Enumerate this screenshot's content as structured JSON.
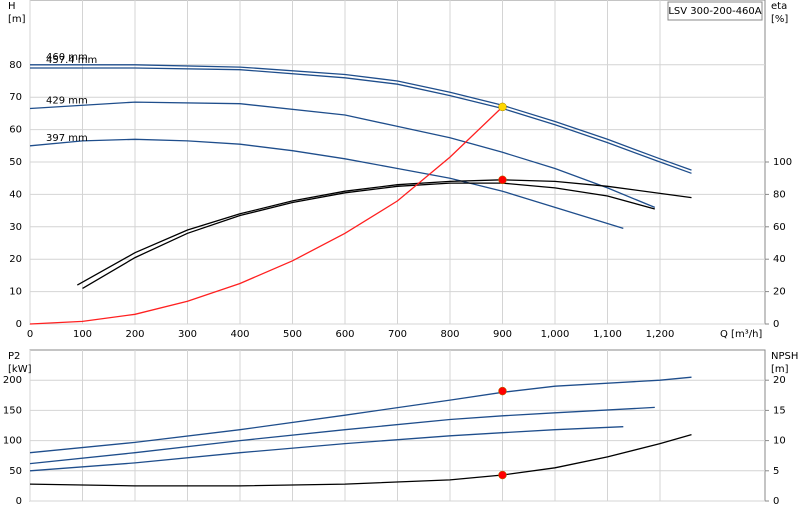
{
  "chart_data": [
    {
      "type": "line",
      "label_box": "LSV 300-200-460A",
      "y_label": "H",
      "y_unit": "[m]",
      "y2_label": "eta",
      "y2_unit": "[%]",
      "x_label": "Q [m³/h]",
      "xlim": [
        0,
        1400
      ],
      "xticks": [
        0,
        100,
        200,
        300,
        400,
        500,
        600,
        700,
        800,
        900,
        {
          "value": 1000,
          "label": "1,000"
        },
        {
          "value": 1100,
          "label": "1,100"
        },
        {
          "value": 1200,
          "label": "1,200"
        }
      ],
      "ylim": [
        0,
        100
      ],
      "yticks": [
        0,
        10,
        20,
        30,
        40,
        50,
        60,
        70,
        80
      ],
      "y2lim": [
        0,
        200
      ],
      "y2ticks": [
        0,
        20,
        40,
        60,
        80,
        100
      ],
      "grid": true,
      "show_xtick_labels": true,
      "series": [
        {
          "name": "460 mm",
          "color": "#1f4e8c",
          "x": [
            0,
            200,
            400,
            600,
            700,
            800,
            900,
            1000,
            1100,
            1200,
            1260
          ],
          "values": [
            80,
            80,
            79.3,
            77,
            75,
            71.5,
            67.5,
            62.5,
            57,
            51,
            47.5
          ]
        },
        {
          "name": "457.4 mm",
          "color": "#1f4e8c",
          "x": [
            0,
            200,
            400,
            600,
            700,
            800,
            900,
            1000,
            1100,
            1200,
            1260
          ],
          "values": [
            79,
            79,
            78.5,
            76,
            74,
            70.5,
            66.5,
            61.5,
            56,
            50,
            46.5
          ]
        },
        {
          "name": "429 mm",
          "color": "#1f4e8c",
          "x": [
            0,
            200,
            400,
            600,
            700,
            800,
            900,
            1000,
            1100,
            1190
          ],
          "values": [
            66.5,
            68.5,
            68,
            64.5,
            61,
            57.5,
            53,
            48,
            42,
            36
          ]
        },
        {
          "name": "397 mm",
          "color": "#1f4e8c",
          "x": [
            0,
            100,
            200,
            300,
            400,
            500,
            600,
            700,
            800,
            900,
            1000,
            1130
          ],
          "values": [
            55,
            56.5,
            57,
            56.5,
            55.5,
            53.5,
            51,
            48,
            45,
            41,
            36,
            29.5
          ]
        },
        {
          "color": "#000000",
          "axis": "y2",
          "x": [
            90,
            200,
            300,
            400,
            500,
            600,
            700,
            800,
            900,
            1000,
            1100,
            1260
          ],
          "values": [
            24,
            44,
            58,
            68,
            76,
            82,
            86,
            88,
            89,
            88,
            85,
            78
          ]
        },
        {
          "color": "#000000",
          "axis": "y2",
          "x": [
            100,
            200,
            300,
            400,
            500,
            600,
            700,
            800,
            900,
            1000,
            1100,
            1190
          ],
          "values": [
            22,
            41,
            56,
            67,
            75,
            81,
            85,
            87,
            87,
            84,
            79,
            71
          ]
        },
        {
          "color": "#ff2020",
          "x": [
            0,
            100,
            200,
            300,
            400,
            500,
            600,
            700,
            800,
            900
          ],
          "values": [
            0,
            0.8,
            3,
            7,
            12.5,
            19.5,
            28,
            38,
            51.5,
            67
          ]
        }
      ],
      "points": [
        {
          "x": 900,
          "y": 67,
          "color": "#ffd700"
        },
        {
          "x": 900,
          "y": 89,
          "color": "#ff0000",
          "axis": "y2"
        }
      ]
    },
    {
      "type": "line",
      "y_label": "P2",
      "y_unit": "[kW]",
      "y2_label": "NPSH",
      "y2_unit": "[m]",
      "xlim": [
        0,
        1400
      ],
      "xticks": [
        0,
        100,
        200,
        300,
        400,
        500,
        600,
        700,
        800,
        900,
        1000,
        1100,
        1200
      ],
      "ylim": [
        0,
        250
      ],
      "yticks": [
        0,
        50,
        100,
        150,
        200
      ],
      "y2lim": [
        0,
        25
      ],
      "y2ticks": [
        0,
        5,
        10,
        15,
        20
      ],
      "grid": true,
      "show_xtick_labels": false,
      "series": [
        {
          "color": "#1f4e8c",
          "x": [
            0,
            200,
            400,
            600,
            800,
            900,
            1000,
            1200,
            1260
          ],
          "values": [
            80,
            97,
            118,
            142,
            167,
            180,
            190,
            200,
            205
          ]
        },
        {
          "color": "#1f4e8c",
          "x": [
            0,
            200,
            400,
            600,
            800,
            900,
            1000,
            1190
          ],
          "values": [
            62,
            80,
            100,
            118,
            135,
            141,
            146,
            155
          ]
        },
        {
          "color": "#1f4e8c",
          "x": [
            0,
            200,
            400,
            600,
            800,
            900,
            1000,
            1130
          ],
          "values": [
            50,
            63,
            80,
            95,
            108,
            113,
            118,
            123
          ]
        },
        {
          "color": "#000000",
          "axis": "y2",
          "x": [
            0,
            200,
            400,
            600,
            800,
            900,
            1000,
            1100,
            1200,
            1260
          ],
          "values": [
            2.8,
            2.5,
            2.5,
            2.8,
            3.5,
            4.3,
            5.5,
            7.3,
            9.5,
            11
          ]
        }
      ],
      "points": [
        {
          "x": 900,
          "y": 182,
          "color": "#ff0000"
        },
        {
          "x": 900,
          "y": 4.3,
          "color": "#ff0000",
          "axis": "y2"
        }
      ]
    }
  ]
}
